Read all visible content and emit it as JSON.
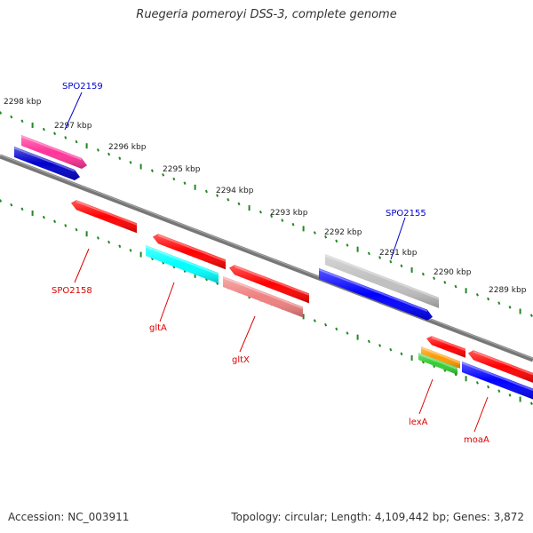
{
  "title": "Ruegeria pomeroyi DSS-3, complete genome",
  "footer": {
    "accession": "Accession: NC_003911",
    "summary": "Topology: circular; Length: 4,109,442 bp; Genes: 3,872"
  },
  "ticks": [
    "2298 kbp",
    "2297 kbp",
    "2296 kbp",
    "2295 kbp",
    "2294 kbp",
    "2293 kbp",
    "2292 kbp",
    "2291 kbp",
    "2290 kbp",
    "2289 kbp"
  ],
  "genes": [
    {
      "id": "spo2159-pink",
      "label": "",
      "color": "#ff3399"
    },
    {
      "id": "spo2159",
      "label": "SPO2159",
      "color": "#0000cc"
    },
    {
      "id": "spo2158",
      "label": "SPO2158",
      "color": "#ff0000"
    },
    {
      "id": "glta",
      "label": "gltA",
      "color": "#ff0000"
    },
    {
      "id": "glta-cyan",
      "label": "",
      "color": "#00ffff"
    },
    {
      "id": "gltx",
      "label": "gltX",
      "color": "#ff0000"
    },
    {
      "id": "gltx-pink",
      "label": "",
      "color": "#f08080"
    },
    {
      "id": "spo2155-grey",
      "label": "",
      "color": "#c0c0c0"
    },
    {
      "id": "spo2155",
      "label": "SPO2155",
      "color": "#0000ff"
    },
    {
      "id": "lexa",
      "label": "lexA",
      "color": "#ff0000"
    },
    {
      "id": "lexa-orange",
      "label": "",
      "color": "#ff9900"
    },
    {
      "id": "lexa-green",
      "label": "",
      "color": "#33cc33"
    },
    {
      "id": "moaa",
      "label": "moaA",
      "color": "#ff0000"
    },
    {
      "id": "moaa-blue",
      "label": "",
      "color": "#0000ff"
    }
  ],
  "colors": {
    "backbone": "#777777",
    "tick": "#228822",
    "label_blue": "#0000cc",
    "label_red": "#dd0000"
  }
}
